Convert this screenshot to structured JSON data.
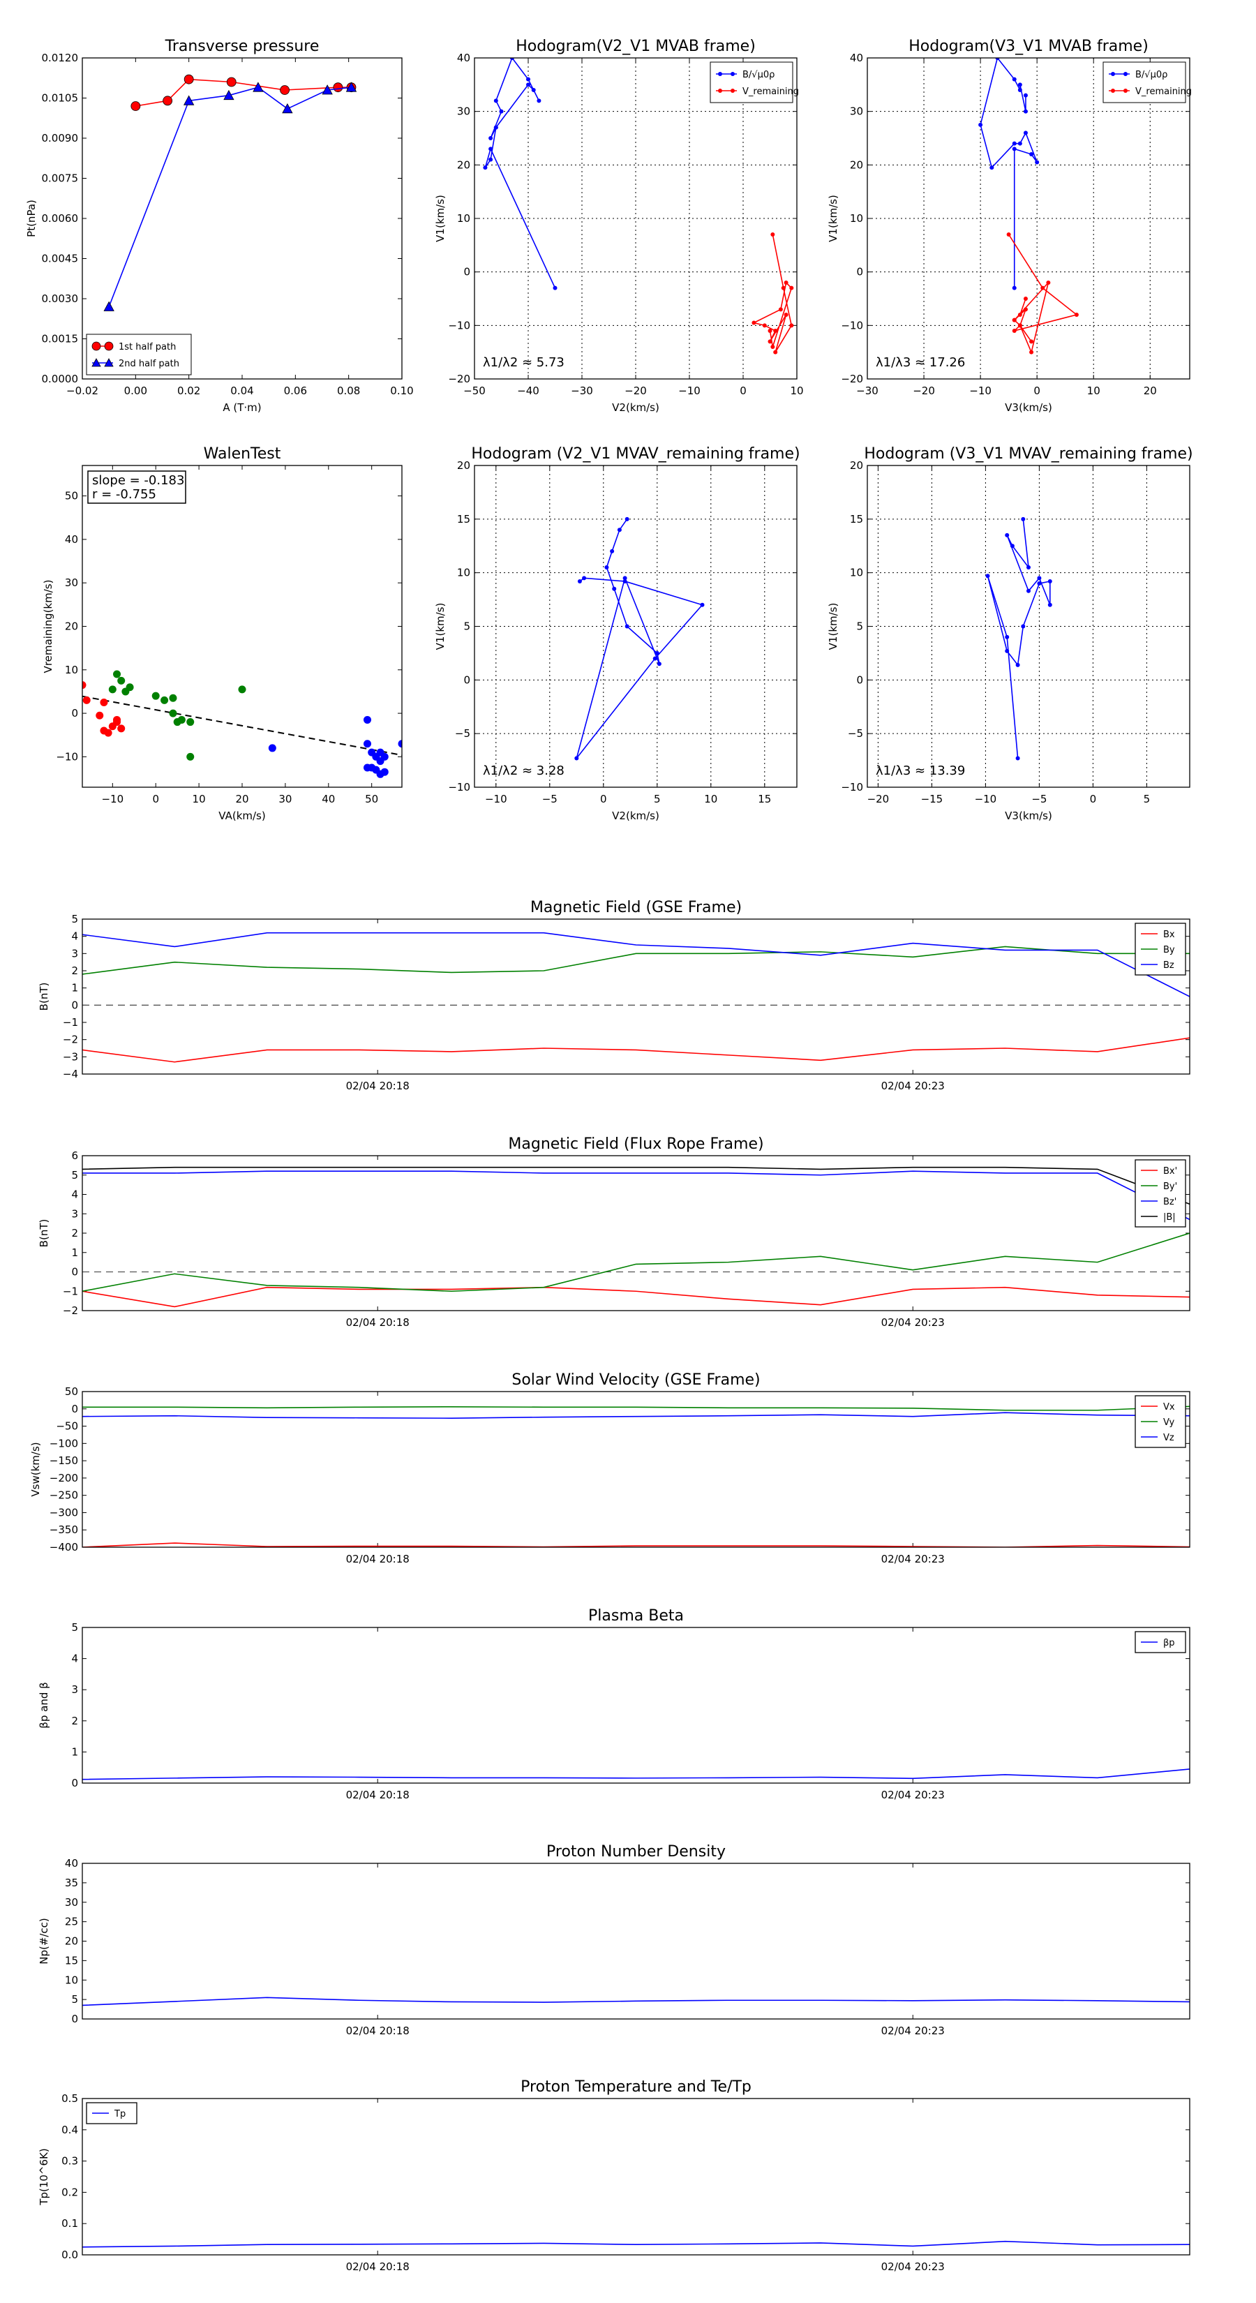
{
  "chart_data": [
    {
      "type": "scatter",
      "title": "Transverse pressure",
      "xlabel": "A (T·m)",
      "ylabel": "Pt(nPa)",
      "xlim": [
        -0.02,
        0.1
      ],
      "ylim": [
        0,
        0.012
      ],
      "xticks": [
        "−0.02",
        "0.00",
        "0.02",
        "0.04",
        "0.06",
        "0.08",
        "0.10"
      ],
      "yticks": [
        "0.0000",
        "0.0015",
        "0.0030",
        "0.0045",
        "0.0060",
        "0.0075",
        "0.0090",
        "0.0105",
        "0.0120"
      ],
      "grid": false,
      "legend": "bottom-left",
      "series": [
        {
          "name": "1st half path",
          "color": "#ff0000",
          "marker": "circle",
          "x": [
            0.0,
            0.012,
            0.02,
            0.036,
            0.056,
            0.076,
            0.081
          ],
          "y": [
            0.0102,
            0.0104,
            0.0112,
            0.0111,
            0.0108,
            0.0109,
            0.0109
          ]
        },
        {
          "name": "2nd half path",
          "color": "#0000ff",
          "marker": "triangle",
          "x": [
            -0.01,
            0.02,
            0.035,
            0.046,
            0.057,
            0.072,
            0.081
          ],
          "y": [
            0.0027,
            0.0104,
            0.0106,
            0.0109,
            0.0101,
            0.0108,
            0.0109
          ]
        }
      ]
    },
    {
      "type": "line",
      "title": "Hodogram(V2_V1 MVAB frame)",
      "xlabel": "V2(km/s)",
      "ylabel": "V1(km/s)",
      "xlim": [
        -50,
        10
      ],
      "ylim": [
        -20,
        40
      ],
      "xticks": [
        "−50",
        "−40",
        "−30",
        "−20",
        "−10",
        "0",
        "10"
      ],
      "yticks": [
        "−20",
        "−10",
        "0",
        "10",
        "20",
        "30",
        "40"
      ],
      "grid": true,
      "legend": "top-right",
      "annotation": "λ1/λ2 ≈ 5.73",
      "series": [
        {
          "name": "B/√μ0ρ",
          "color": "#0000ff",
          "x": [
            -35,
            -47,
            -48,
            -47,
            -46,
            -47,
            -45,
            -46,
            -43,
            -40,
            -38,
            -39,
            -40,
            -46
          ],
          "y": [
            -3,
            23,
            19.5,
            21,
            27,
            25,
            30,
            32,
            40,
            36,
            32,
            34,
            35,
            27
          ]
        },
        {
          "name": "V_remaining",
          "color": "#ff0000",
          "x": [
            5.5,
            7.5,
            9,
            6,
            8,
            5,
            6,
            4,
            2,
            7,
            8,
            9,
            5.5,
            5
          ],
          "y": [
            7,
            -3,
            -10,
            -15,
            -8,
            -13,
            -11,
            -10,
            -9.5,
            -7,
            -2,
            -3,
            -14,
            -11
          ]
        }
      ]
    },
    {
      "type": "line",
      "title": "Hodogram(V3_V1 MVAB frame)",
      "xlabel": "V3(km/s)",
      "ylabel": "V1(km/s)",
      "xlim": [
        -30,
        27
      ],
      "ylim": [
        -20,
        40
      ],
      "xticks": [
        "−30",
        "−20",
        "−10",
        "0",
        "10",
        "20"
      ],
      "yticks": [
        "−20",
        "−10",
        "0",
        "10",
        "20",
        "30",
        "40"
      ],
      "grid": true,
      "legend": "top-right",
      "annotation": "λ1/λ3 ≈ 17.26",
      "series": [
        {
          "name": "B/√μ0ρ",
          "color": "#0000ff",
          "x": [
            -4,
            -4,
            -1,
            0,
            -2,
            -3,
            -4,
            -8,
            -10,
            -7,
            -4,
            -3,
            -3,
            -2,
            -2
          ],
          "y": [
            -3,
            23,
            22,
            20.5,
            26,
            24,
            24,
            19.5,
            27.5,
            40,
            36,
            34,
            35,
            30,
            33
          ]
        },
        {
          "name": "V_remaining",
          "color": "#ff0000",
          "x": [
            -5,
            1,
            7,
            -4,
            -3,
            -1,
            2,
            -4,
            -3,
            -1,
            -3,
            -2,
            -4,
            -3,
            -2
          ],
          "y": [
            7,
            -3,
            -8,
            -11,
            -10,
            -15,
            -2,
            -9,
            -10,
            -13,
            -10,
            -7,
            -9,
            -8,
            -5
          ]
        }
      ]
    },
    {
      "type": "scatter",
      "title": "WalenTest",
      "xlabel": "VA(km/s)",
      "ylabel": "Vremaining(km/s)",
      "xlim": [
        -17,
        57
      ],
      "ylim": [
        -17,
        57
      ],
      "xticks": [
        "−10",
        "0",
        "10",
        "20",
        "30",
        "40",
        "50"
      ],
      "yticks": [
        "−10",
        "0",
        "10",
        "20",
        "30",
        "40",
        "50"
      ],
      "grid": false,
      "annotation": [
        "slope = -0.183",
        "r = -0.755"
      ],
      "fit_line": {
        "slope": -0.183,
        "intercept": 0.8,
        "color": "#000000",
        "style": "dashed"
      },
      "series": [
        {
          "color": "#ff0000",
          "x": [
            -17,
            -16,
            -12,
            -13,
            -12,
            -9,
            -9,
            -8,
            -10,
            -11
          ],
          "y": [
            6.5,
            3,
            2.5,
            -0.5,
            -4,
            -1.5,
            -2,
            -3.5,
            -3,
            -4.5
          ]
        },
        {
          "color": "#008000",
          "x": [
            -9,
            -10,
            -8,
            -7,
            -6,
            0,
            2,
            4,
            5,
            4,
            6,
            8,
            20,
            8
          ],
          "y": [
            9,
            5.5,
            7.5,
            5,
            6,
            4,
            3,
            3.5,
            -2,
            0,
            -1.5,
            -2,
            5.5,
            -10
          ]
        },
        {
          "color": "#0000ff",
          "x": [
            27,
            49,
            49,
            50,
            51,
            52,
            53,
            52,
            51,
            50,
            52,
            49,
            57,
            53
          ],
          "y": [
            -8,
            -1.5,
            -7,
            -9,
            -10,
            -11,
            -10,
            -14,
            -13,
            -12.5,
            -9,
            -12.5,
            -7,
            -13.5
          ]
        }
      ]
    },
    {
      "type": "line",
      "title": "Hodogram (V2_V1 MVAV_remaining frame)",
      "xlabel": "V2(km/s)",
      "ylabel": "V1(km/s)",
      "xlim": [
        -12,
        18
      ],
      "ylim": [
        -10,
        20
      ],
      "xticks": [
        "−10",
        "−5",
        "0",
        "5",
        "10",
        "15"
      ],
      "yticks": [
        "−10",
        "−5",
        "0",
        "5",
        "10",
        "15",
        "20"
      ],
      "grid": true,
      "annotation": "λ1/λ2 ≈ 3.28",
      "series": [
        {
          "color": "#0000ff",
          "x": [
            2.2,
            1.5,
            0.8,
            0.3,
            1,
            2.2,
            5,
            5.2,
            2,
            -2.5,
            4.8,
            9.2,
            2,
            -1.8,
            -2.2
          ],
          "y": [
            15,
            14,
            12,
            10.5,
            8.5,
            5,
            2.5,
            1.5,
            9.5,
            -7.3,
            2,
            7,
            9.2,
            9.5,
            9.2
          ]
        }
      ]
    },
    {
      "type": "line",
      "title": "Hodogram (V3_V1 MVAV_remaining frame)",
      "xlabel": "V3(km/s)",
      "ylabel": "V1(km/s)",
      "xlim": [
        -21,
        9
      ],
      "ylim": [
        -10,
        20
      ],
      "xticks": [
        "−20",
        "−15",
        "−10",
        "−5",
        "0",
        "5"
      ],
      "yticks": [
        "−10",
        "−5",
        "0",
        "5",
        "10",
        "15",
        "20"
      ],
      "grid": true,
      "annotation": "λ1/λ3 ≈ 13.39",
      "series": [
        {
          "color": "#0000ff",
          "x": [
            -6.5,
            -6,
            -7.5,
            -8,
            -6,
            -5,
            -4,
            -4,
            -5,
            -6.5,
            -7,
            -8,
            -9.8,
            -8,
            -7
          ],
          "y": [
            15,
            10.5,
            12.5,
            13.5,
            8.3,
            9.5,
            7,
            9.2,
            9,
            5,
            1.4,
            2.7,
            9.7,
            4,
            -7.3
          ]
        }
      ]
    },
    {
      "type": "line",
      "title": "Magnetic Field (GSE Frame)",
      "ylabel": "B(nT)",
      "ylim": [
        -4,
        5
      ],
      "yticks": [
        "−4",
        "−3",
        "−2",
        "−1",
        "0",
        "1",
        "2",
        "3",
        "4",
        "5"
      ],
      "xtick_labels": [
        "02/04 20:18",
        "02/04 20:23"
      ],
      "legend": "top-right",
      "zero_line": true,
      "series": [
        {
          "name": "Bx",
          "color": "#ff0000",
          "values": [
            -2.6,
            -3.3,
            -2.6,
            -2.6,
            -2.7,
            -2.5,
            -2.6,
            -2.9,
            -3.2,
            -2.6,
            -2.5,
            -2.7,
            -1.9
          ]
        },
        {
          "name": "By",
          "color": "#008000",
          "values": [
            1.8,
            2.5,
            2.2,
            2.1,
            1.9,
            2.0,
            3.0,
            3.0,
            3.1,
            2.8,
            3.4,
            3.0,
            3.0
          ]
        },
        {
          "name": "Bz",
          "color": "#0000ff",
          "values": [
            4.1,
            3.4,
            4.2,
            4.2,
            4.2,
            4.2,
            3.5,
            3.3,
            2.9,
            3.6,
            3.2,
            3.2,
            0.5
          ]
        }
      ]
    },
    {
      "type": "line",
      "title": "Magnetic Field (Flux Rope Frame)",
      "ylabel": "B(nT)",
      "ylim": [
        -2,
        6
      ],
      "yticks": [
        "−2",
        "−1",
        "0",
        "1",
        "2",
        "3",
        "4",
        "5",
        "6"
      ],
      "xtick_labels": [
        "02/04 20:18",
        "02/04 20:23"
      ],
      "legend": "top-right",
      "zero_line": true,
      "series": [
        {
          "name": "Bx'",
          "color": "#ff0000",
          "values": [
            -1.0,
            -1.8,
            -0.8,
            -0.9,
            -0.9,
            -0.8,
            -1.0,
            -1.4,
            -1.7,
            -0.9,
            -0.8,
            -1.2,
            -1.3
          ]
        },
        {
          "name": "By'",
          "color": "#008000",
          "values": [
            -1.0,
            -0.1,
            -0.7,
            -0.8,
            -1.0,
            -0.8,
            0.4,
            0.5,
            0.8,
            0.1,
            0.8,
            0.5,
            2.0
          ]
        },
        {
          "name": "Bz'",
          "color": "#0000ff",
          "values": [
            5.1,
            5.1,
            5.2,
            5.2,
            5.2,
            5.1,
            5.1,
            5.1,
            5.0,
            5.2,
            5.1,
            5.1,
            2.7
          ]
        },
        {
          "name": "|B|",
          "color": "#000000",
          "values": [
            5.3,
            5.4,
            5.4,
            5.4,
            5.4,
            5.4,
            5.4,
            5.4,
            5.3,
            5.4,
            5.4,
            5.3,
            3.5
          ]
        }
      ]
    },
    {
      "type": "line",
      "title": "Solar Wind Velocity (GSE Frame)",
      "ylabel": "Vsw(km/s)",
      "ylim": [
        -400,
        50
      ],
      "yticks": [
        "−400",
        "−350",
        "−300",
        "−250",
        "−200",
        "−150",
        "−100",
        "−50",
        "0",
        "50"
      ],
      "xtick_labels": [
        "02/04 20:18",
        "02/04 20:23"
      ],
      "legend": "top-right",
      "series": [
        {
          "name": "Vx",
          "color": "#ff0000",
          "values": [
            -400,
            -388,
            -398,
            -397,
            -397,
            -399,
            -396,
            -396,
            -396,
            -398,
            -400,
            -395,
            -399
          ]
        },
        {
          "name": "Vy",
          "color": "#008000",
          "values": [
            5,
            5,
            3,
            5,
            6,
            5,
            5,
            3,
            3,
            2,
            -4,
            -4,
            7
          ]
        },
        {
          "name": "Vz",
          "color": "#0000ff",
          "values": [
            -22,
            -20,
            -25,
            -26,
            -27,
            -24,
            -22,
            -20,
            -17,
            -22,
            -11,
            -18,
            -20
          ]
        }
      ]
    },
    {
      "type": "line",
      "title": "Plasma Beta",
      "ylabel": "βp and β",
      "ylim": [
        0,
        5
      ],
      "yticks": [
        "0",
        "1",
        "2",
        "3",
        "4",
        "5"
      ],
      "xtick_labels": [
        "02/04 20:18",
        "02/04 20:23"
      ],
      "legend": "top-right",
      "series": [
        {
          "name": "βp",
          "color": "#0000ff",
          "values": [
            0.12,
            0.16,
            0.2,
            0.19,
            0.17,
            0.17,
            0.16,
            0.17,
            0.19,
            0.15,
            0.27,
            0.17,
            0.45
          ]
        }
      ]
    },
    {
      "type": "line",
      "title": "Proton Number Density",
      "ylabel": "Np(#/cc)",
      "ylim": [
        0,
        40
      ],
      "yticks": [
        "0",
        "5",
        "10",
        "15",
        "20",
        "25",
        "30",
        "35",
        "40"
      ],
      "xtick_labels": [
        "02/04 20:18",
        "02/04 20:23"
      ],
      "series": [
        {
          "color": "#0000ff",
          "values": [
            3.5,
            4.5,
            5.5,
            4.8,
            4.4,
            4.3,
            4.6,
            4.8,
            4.8,
            4.7,
            4.9,
            4.7,
            4.4
          ]
        }
      ]
    },
    {
      "type": "line",
      "title": "Proton Temperature and Te/Tp",
      "ylabel": "Tp(10^6K)",
      "ylim": [
        0,
        0.5
      ],
      "yticks": [
        "0.0",
        "0.1",
        "0.2",
        "0.3",
        "0.4",
        "0.5"
      ],
      "xtick_labels": [
        "02/04 20:18",
        "02/04 20:23"
      ],
      "legend": "top-left",
      "series": [
        {
          "name": "Tp",
          "color": "#0000ff",
          "values": [
            0.025,
            0.028,
            0.033,
            0.034,
            0.035,
            0.037,
            0.033,
            0.035,
            0.038,
            0.028,
            0.043,
            0.032,
            0.033
          ]
        }
      ]
    }
  ]
}
